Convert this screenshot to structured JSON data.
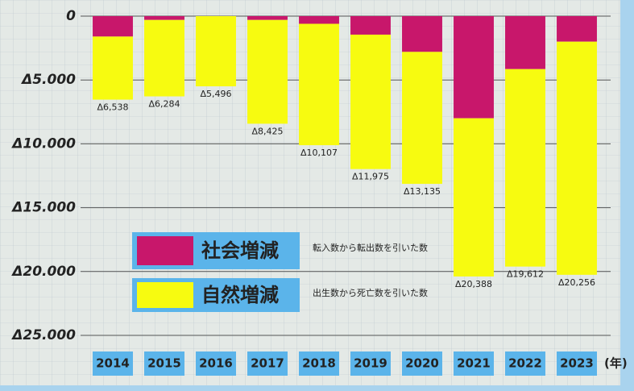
{
  "chart_data": {
    "type": "stacked-bar",
    "categories": [
      "2014",
      "2015",
      "2016",
      "2017",
      "2018",
      "2019",
      "2020",
      "2021",
      "2022",
      "2023"
    ],
    "x_unit": "(年)",
    "series": [
      {
        "name": "社会増減",
        "description": "転入数から転出数を引いた数",
        "color": "#c8176b",
        "values": [
          -1600,
          -300,
          0,
          -300,
          -600,
          -1450,
          -2800,
          -8000,
          -4150,
          -2000
        ]
      },
      {
        "name": "自然増減",
        "description": "出生数から死亡数を引いた数",
        "color": "#f7fb10",
        "values": [
          -4938,
          -5984,
          -5496,
          -8125,
          -9507,
          -10525,
          -10335,
          -12388,
          -15462,
          -18256
        ]
      }
    ],
    "totals": {
      "values": [
        -6538,
        -6284,
        -5496,
        -8425,
        -10107,
        -11975,
        -13135,
        -20388,
        -19612,
        -20256
      ],
      "value_labels": [
        "Δ6,538",
        "Δ6,284",
        "Δ5,496",
        "Δ8,425",
        "Δ10,107",
        "Δ11,975",
        "Δ13,135",
        "Δ20,388",
        "Δ19,612",
        "Δ20,256"
      ]
    },
    "ylim": [
      -25000,
      0
    ],
    "yticks": [
      0,
      {
        "value": -5000,
        "label": "Δ5.000"
      },
      {
        "value": -10000,
        "label": "Δ10.000"
      },
      {
        "value": -15000,
        "label": "Δ15.000"
      },
      {
        "value": -20000,
        "label": "Δ20.000"
      },
      {
        "value": -25000,
        "label": "Δ25.000"
      }
    ],
    "grid": true
  }
}
